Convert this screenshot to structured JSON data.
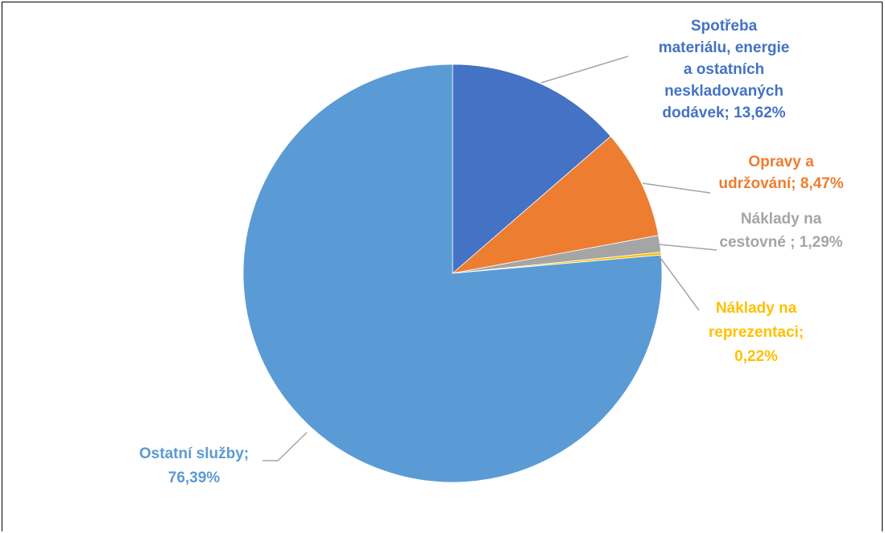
{
  "chart_data": {
    "type": "pie",
    "start_angle_deg": 0,
    "direction": "clockwise",
    "slices": [
      {
        "label_lines": [
          "Spotřeba",
          "materiálu, energie",
          "a ostatních",
          "neskladovaných",
          "dodávek; 13,62%"
        ],
        "value": 13.62,
        "color": "#4472C4"
      },
      {
        "label_lines": [
          "Opravy a",
          "udržování; 8,47%"
        ],
        "value": 8.47,
        "color": "#ED7D31"
      },
      {
        "label_lines": [
          "Náklady na",
          "cestovné ; 1,29%"
        ],
        "value": 1.29,
        "color": "#A5A5A5"
      },
      {
        "label_lines": [
          "Náklady na",
          "reprezentaci;",
          "0,22%"
        ],
        "value": 0.22,
        "color": "#FFC000"
      },
      {
        "label_lines": [
          "Ostatní služby;",
          "76,39%"
        ],
        "value": 76.39,
        "color": "#5B9BD5"
      }
    ],
    "leader_line_color": "#A5A5A5"
  }
}
